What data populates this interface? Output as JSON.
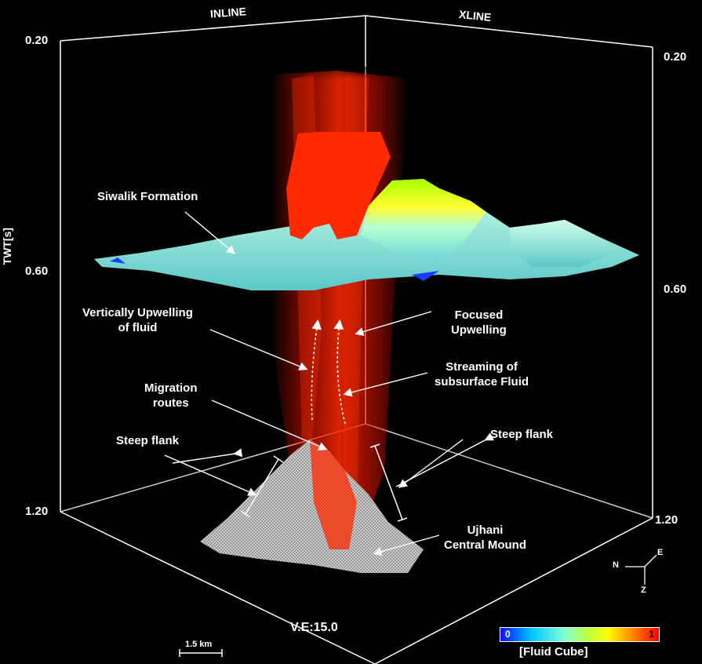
{
  "axes": {
    "inline": "INLINE",
    "xline": "XLINE",
    "twt": "TWT[s]",
    "left_ticks": [
      "0.20",
      "0.60",
      "1.20"
    ],
    "right_ticks": [
      "0.20",
      "0.60",
      "1.20"
    ]
  },
  "labels": {
    "siwalik": "Siwalik Formation",
    "vertical_upwelling": [
      "Vertically Upwelling",
      "of fluid"
    ],
    "focused_upwelling": [
      "Focused",
      "Upwelling"
    ],
    "streaming": [
      "Streaming of",
      "subsurface Fluid"
    ],
    "migration": [
      "Migration",
      "routes"
    ],
    "steep_flank_left": "Steep flank",
    "steep_flank_right": "Steep flank",
    "mound": [
      "Ujhani",
      "Central Mound"
    ]
  },
  "compass": {
    "n": "N",
    "e": "E",
    "z": "Z"
  },
  "scale_bar": "1.5 km",
  "vertical_exaggeration": "V.E:15.0",
  "colorbar": {
    "min": "0",
    "max": "1",
    "title": "[Fluid Cube]"
  },
  "colors": {
    "fluid": "#ff2000",
    "surface_low": "#9fe8e0",
    "surface_high": "#c8ff00",
    "mound": "#b8b8b8"
  }
}
